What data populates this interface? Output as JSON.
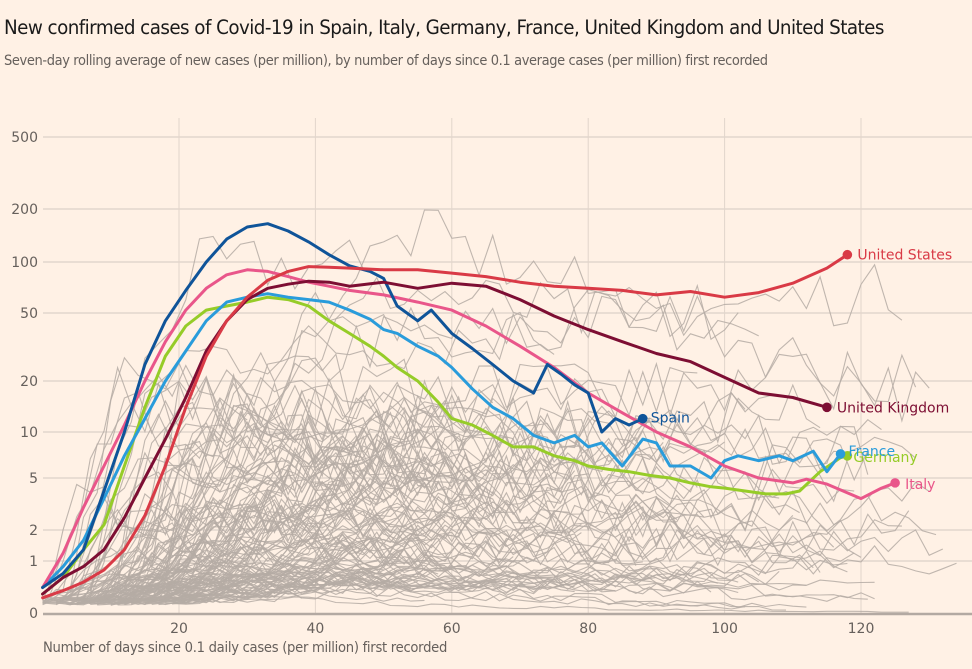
{
  "header": {
    "title": "New confirmed cases of Covid-19 in Spain, Italy, Germany, France, United Kingdom and United States",
    "subtitle": "Seven-day rolling average of new cases (per million), by number of days since 0.1 average cases (per million) first recorded"
  },
  "colors": {
    "background": "#fff1e5",
    "grid": "#e9ddd3",
    "background_lines": "#b5aca5",
    "axis": "#b3a9a2"
  },
  "chart_data": {
    "type": "line",
    "title": "New confirmed cases of Covid-19 in Spain, Italy, Germany, France, United Kingdom and United States",
    "subtitle": "Seven-day rolling average of new cases (per million), by number of days since 0.1 average cases (per million) first recorded",
    "xlabel": "Number of days since 0.1 daily cases (per million) first recorded",
    "ylabel": "",
    "y_scale": "symlog",
    "xlim": [
      0,
      136
    ],
    "ylim": [
      0,
      700
    ],
    "x_ticks": [
      20,
      40,
      60,
      80,
      100,
      120
    ],
    "x_tick_labels": [
      "20",
      "40",
      "60",
      "80",
      "100",
      "120"
    ],
    "y_ticks": [
      0,
      1,
      2,
      5,
      10,
      20,
      50,
      100,
      200,
      500
    ],
    "y_tick_labels": [
      "0",
      "1",
      "2",
      "5",
      "10",
      "20",
      "50",
      "100",
      "200",
      "500"
    ],
    "grid": true,
    "legend": "direct-labels at line ends",
    "series": [
      {
        "name": "United States",
        "label": "United States",
        "color": "#d93a46",
        "x": [
          0,
          3,
          6,
          9,
          12,
          15,
          18,
          21,
          24,
          27,
          30,
          33,
          36,
          39,
          42,
          45,
          50,
          55,
          60,
          65,
          70,
          75,
          80,
          85,
          90,
          95,
          100,
          105,
          110,
          115,
          118
        ],
        "values": [
          0.15,
          0.25,
          0.4,
          0.7,
          1.3,
          2.6,
          6,
          14,
          28,
          45,
          62,
          78,
          88,
          94,
          93,
          92,
          90,
          90,
          86,
          82,
          76,
          72,
          70,
          68,
          64,
          67,
          62,
          66,
          75,
          92,
          110
        ]
      },
      {
        "name": "United Kingdom",
        "label": "United Kingdom",
        "color": "#7d0e33",
        "x": [
          0,
          3,
          6,
          9,
          12,
          15,
          18,
          21,
          24,
          27,
          30,
          33,
          36,
          39,
          42,
          45,
          50,
          55,
          60,
          65,
          70,
          75,
          80,
          85,
          90,
          95,
          100,
          105,
          110,
          115
        ],
        "values": [
          0.2,
          0.5,
          0.8,
          1.3,
          2.5,
          5,
          9,
          16,
          30,
          45,
          60,
          70,
          74,
          77,
          76,
          72,
          76,
          70,
          75,
          72,
          60,
          48,
          40,
          34,
          29,
          26,
          21,
          17,
          16,
          14
        ]
      },
      {
        "name": "Italy",
        "label": "Italy",
        "color": "#e9568a",
        "x": [
          0,
          3,
          6,
          9,
          12,
          15,
          18,
          21,
          24,
          27,
          30,
          33,
          36,
          39,
          42,
          45,
          50,
          55,
          60,
          65,
          70,
          75,
          80,
          85,
          90,
          95,
          100,
          105,
          110,
          112,
          115,
          120,
          123,
          125
        ],
        "values": [
          0.3,
          1.2,
          3,
          6,
          11,
          20,
          34,
          52,
          70,
          84,
          90,
          88,
          82,
          76,
          72,
          68,
          64,
          58,
          52,
          42,
          32,
          24,
          17,
          13,
          10,
          8,
          6,
          5,
          4.6,
          4.9,
          4.5,
          3.5,
          4.2,
          4.6
        ]
      },
      {
        "name": "Spain",
        "label": "Spain",
        "color": "#0f5499",
        "x": [
          0,
          3,
          6,
          9,
          12,
          15,
          18,
          21,
          24,
          27,
          30,
          33,
          36,
          39,
          42,
          45,
          48,
          50,
          52,
          55,
          57,
          60,
          63,
          66,
          69,
          72,
          74,
          76,
          78,
          80,
          82,
          84,
          86,
          88
        ],
        "values": [
          0.3,
          0.6,
          1.3,
          4,
          10,
          25,
          45,
          68,
          100,
          135,
          158,
          165,
          150,
          130,
          110,
          95,
          88,
          80,
          55,
          45,
          52,
          38,
          31,
          25,
          20,
          17,
          25,
          22,
          19,
          17,
          10,
          12,
          11,
          12
        ]
      },
      {
        "name": "France",
        "label": "France",
        "color": "#2a9cdb",
        "x": [
          0,
          3,
          6,
          9,
          12,
          15,
          18,
          21,
          24,
          27,
          30,
          33,
          36,
          39,
          42,
          45,
          48,
          50,
          52,
          55,
          58,
          60,
          63,
          66,
          69,
          72,
          75,
          78,
          80,
          82,
          85,
          88,
          90,
          92,
          95,
          98,
          100,
          102,
          105,
          108,
          110,
          113,
          115,
          117
        ],
        "values": [
          0.3,
          0.8,
          1.6,
          3.5,
          7,
          12,
          20,
          30,
          45,
          58,
          62,
          65,
          62,
          60,
          58,
          52,
          46,
          40,
          38,
          32,
          28,
          24,
          18,
          14,
          12,
          9.5,
          8.5,
          9.5,
          8,
          8.5,
          6,
          9,
          8.5,
          6,
          6,
          5,
          6.5,
          7,
          6.5,
          7,
          6.5,
          7.5,
          5.5,
          7.2
        ]
      },
      {
        "name": "Germany",
        "label": "Germany",
        "color": "#96cc28",
        "x": [
          0,
          3,
          6,
          9,
          12,
          15,
          18,
          21,
          24,
          27,
          30,
          33,
          36,
          39,
          42,
          45,
          48,
          50,
          52,
          55,
          58,
          60,
          63,
          66,
          69,
          72,
          75,
          78,
          80,
          83,
          86,
          89,
          92,
          95,
          98,
          100,
          103,
          106,
          109,
          111,
          114,
          117,
          118
        ],
        "values": [
          0.2,
          0.5,
          1.3,
          2.2,
          6,
          14,
          28,
          42,
          52,
          55,
          58,
          62,
          60,
          55,
          45,
          38,
          32,
          28,
          24,
          20,
          15,
          12,
          11,
          9.5,
          8,
          8,
          7,
          6.5,
          6,
          5.7,
          5.5,
          5.2,
          5,
          4.6,
          4.3,
          4.2,
          4,
          3.8,
          3.8,
          4,
          5.5,
          6.8,
          7
        ]
      }
    ],
    "background_series_note": "Unlabelled grey lines represent other countries"
  },
  "axes": {
    "x_label": "Number of days since 0.1 daily cases (per million) first recorded"
  }
}
